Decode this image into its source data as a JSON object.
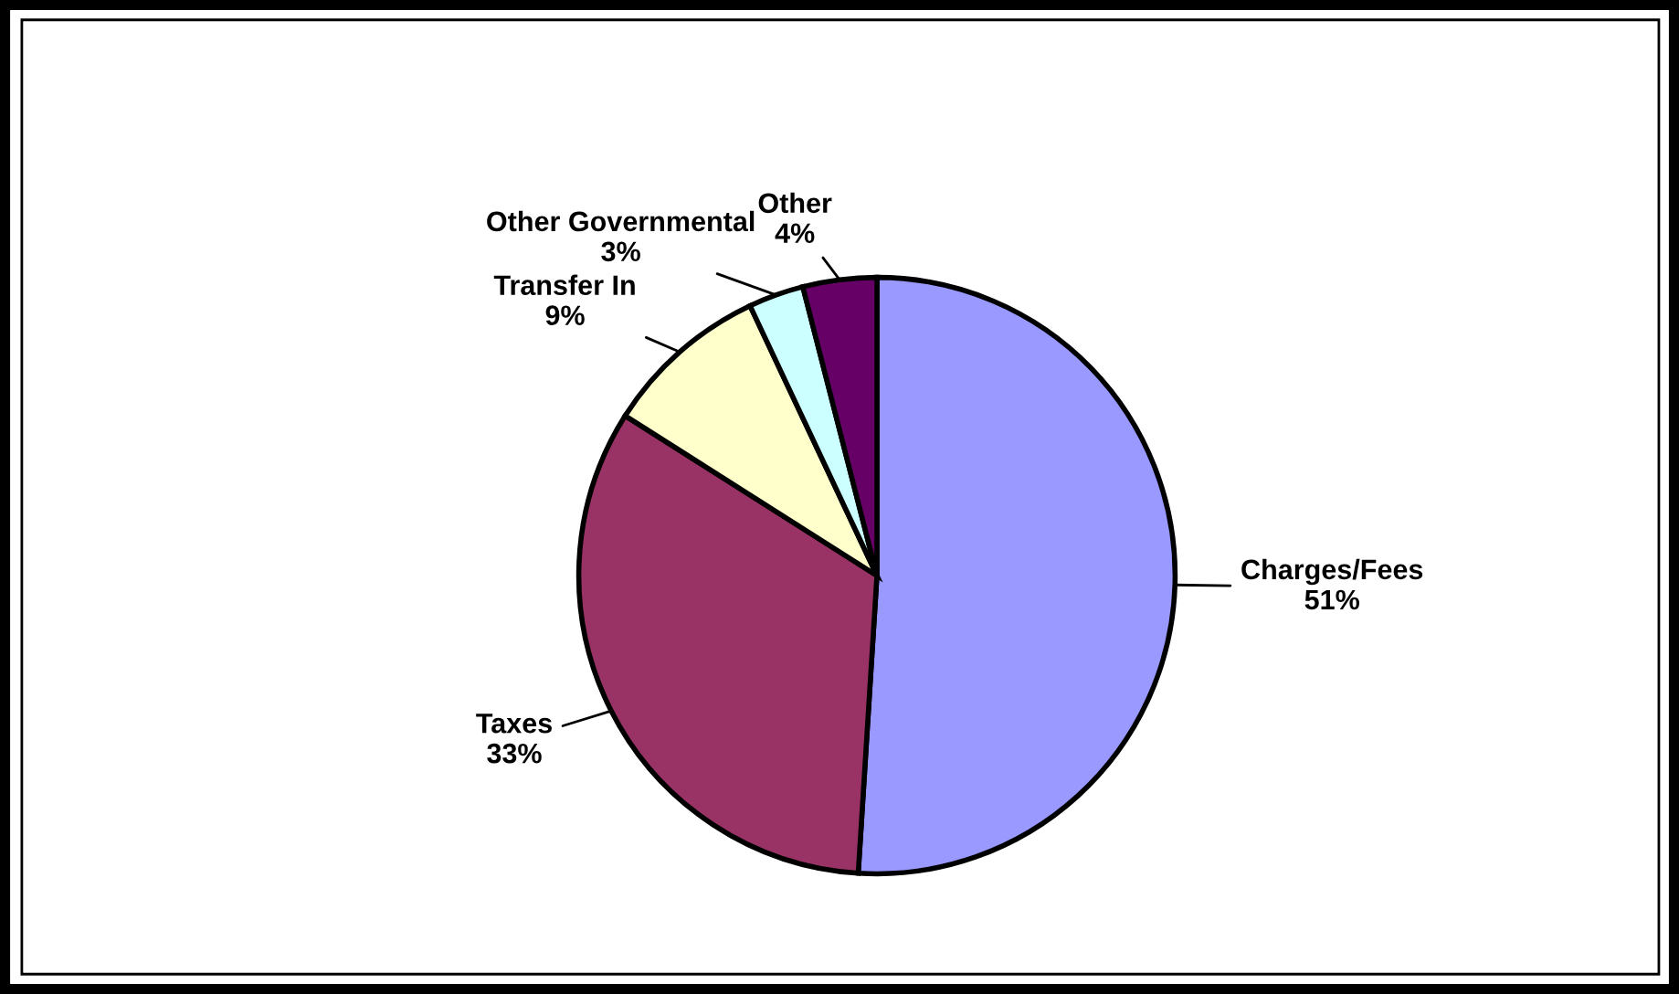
{
  "chart_data": {
    "type": "pie",
    "categories": [
      "Charges/Fees",
      "Taxes",
      "Transfer In",
      "Other Governmental",
      "Other"
    ],
    "values": [
      51,
      33,
      9,
      3,
      4
    ],
    "value_labels": [
      "51%",
      "33%",
      "9%",
      "3%",
      "4%"
    ],
    "colors": [
      "#9999ff",
      "#993366",
      "#ffffcc",
      "#ccffff",
      "#660066"
    ],
    "legend": false
  }
}
